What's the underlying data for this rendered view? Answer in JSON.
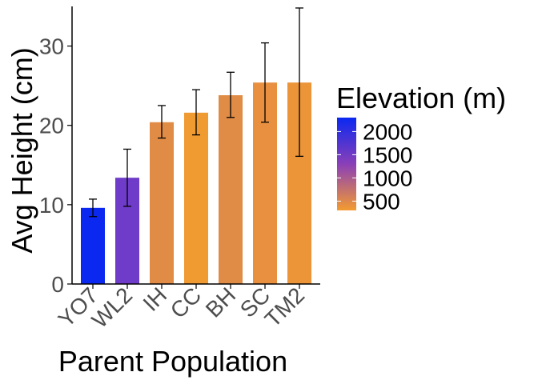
{
  "chart_data": {
    "type": "bar",
    "xlabel": "Parent Population",
    "ylabel": "Avg Height (cm)",
    "ylim": [
      0,
      35
    ],
    "yticks": [
      0,
      10,
      20,
      30
    ],
    "grid": false,
    "categories": [
      "YO7",
      "WL2",
      "IH",
      "CC",
      "BH",
      "SC",
      "TM2"
    ],
    "values": [
      9.6,
      13.4,
      20.4,
      21.6,
      23.8,
      25.4,
      25.4
    ],
    "error_low": [
      8.5,
      9.8,
      18.4,
      18.8,
      21.0,
      20.4,
      16.1
    ],
    "error_high": [
      10.7,
      17.0,
      22.5,
      24.5,
      26.7,
      30.4,
      34.8
    ],
    "bar_colors": [
      "#0a28f0",
      "#6e3cc8",
      "#e08c46",
      "#f09a32",
      "#e08c46",
      "#e89040",
      "#ec9438"
    ],
    "legend": {
      "title": "Elevation (m)",
      "placement": "right",
      "ticks": [
        2000,
        1500,
        1000,
        500
      ],
      "tick_labels": [
        "2000",
        "1500",
        "1000",
        "500"
      ],
      "range": [
        300,
        2300
      ],
      "colors": {
        "high": "#0a28f0",
        "mid": "#8a3fb8",
        "low": "#f39b30"
      }
    }
  }
}
